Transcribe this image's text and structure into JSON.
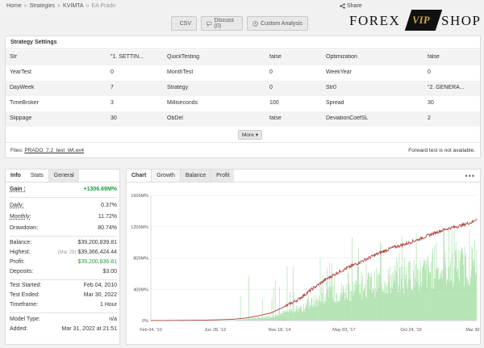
{
  "breadcrumb": {
    "home": "Home",
    "strategies": "Strategies",
    "kvimta": "KVIMTA",
    "current": "EA Prado",
    "sep": "»"
  },
  "share": {
    "label": "Share"
  },
  "toolbar": {
    "csv": "CSV",
    "discuss": "Discuss (0)",
    "custom": "Custom Analysis"
  },
  "logo": {
    "left": "FOREX",
    "middle": "VIP",
    "right": "SHOP"
  },
  "settings": {
    "title": "Strategy Settings",
    "rows": [
      [
        [
          "Str",
          "\"1. SETTIN..."
        ],
        [
          "QuickTesting",
          "false"
        ],
        [
          "Optimization",
          "false"
        ]
      ],
      [
        [
          "YearTest",
          "0"
        ],
        [
          "MonthTest",
          "0"
        ],
        [
          "WeekYear",
          "0"
        ]
      ],
      [
        [
          "DayWeek",
          "7"
        ],
        [
          "Strategy",
          "0"
        ],
        [
          "Str0",
          "\"2. GENERA..."
        ]
      ],
      [
        [
          "TimeBroker",
          "3"
        ],
        [
          "Milliseconds",
          "100"
        ],
        [
          "Spread",
          "30"
        ]
      ],
      [
        [
          "Slippage",
          "30"
        ],
        [
          "ObDel",
          "false"
        ],
        [
          "DeviationCoefSL",
          "2"
        ]
      ]
    ],
    "more": "More",
    "files_label": "Files:",
    "files_link": "PRADO_7.2_test_Wt.ex4",
    "forward": "Forward test is not available."
  },
  "info": {
    "tabs": [
      "Info",
      "Stats",
      "General"
    ],
    "gain_label": "Gain :",
    "gain_value": "+1306.69M%",
    "daily_label": "Daily:",
    "daily_value": "0.37%",
    "monthly_label": "Monthly:",
    "monthly_value": "11.72%",
    "drawdown_label": "Drawdown:",
    "drawdown_value": "80.74%",
    "balance_label": "Balance:",
    "balance_value": "$39,200,839.81",
    "highest_label": "Highest:",
    "highest_date": "(Mar 29)",
    "highest_value": "$39,366,424.44",
    "profit_label": "Profit:",
    "profit_value": "$39,200,836.81",
    "deposits_label": "Deposits:",
    "deposits_value": "$3.00",
    "started_label": "Test Started:",
    "started_value": "Feb 04, 2010",
    "ended_label": "Test Ended:",
    "ended_value": "Mar 30, 2022",
    "timeframe_label": "Timeframe:",
    "timeframe_value": "1 Hour",
    "model_label": "Model Type:",
    "model_value": "n/a",
    "added_label": "Added:",
    "added_value": "Mar 31, 2022 at 21:51"
  },
  "chart_tabs": [
    "Chart",
    "Growth",
    "Balance",
    "Profit"
  ],
  "chart_menu": "•••",
  "chart_data": {
    "type": "line",
    "ylim": [
      0,
      1600
    ],
    "y_ticks": [
      "1600M%",
      "1200M%",
      "800M%",
      "400M%",
      "0%"
    ],
    "y_tick_values": [
      1600,
      1200,
      800,
      400,
      0
    ],
    "x_ticks": [
      "Feb 04, '10",
      "Jun 28, '12",
      "Nov 18, '14",
      "May 03, '17",
      "Oct 24, '19",
      "Mar 30, '22"
    ],
    "x_tick_positions": [
      0,
      2.4,
      4.8,
      7.2,
      9.7,
      12.15
    ],
    "x_range": [
      0,
      12.15
    ],
    "series": [
      {
        "values_x": [
          0,
          1,
          2,
          3,
          3.5,
          4,
          4.5,
          5,
          5.5,
          6,
          6.5,
          7,
          7.5,
          8,
          8.5,
          9,
          9.5,
          10,
          10.5,
          11,
          11.5,
          12,
          12.15
        ],
        "values_y": [
          0,
          2,
          5,
          15,
          30,
          60,
          100,
          180,
          270,
          400,
          520,
          620,
          700,
          780,
          860,
          930,
          980,
          1040,
          1110,
          1170,
          1210,
          1260,
          1306.69
        ]
      }
    ],
    "colors": {
      "line": "#b0413e",
      "bars": "#7ccf7c"
    }
  }
}
